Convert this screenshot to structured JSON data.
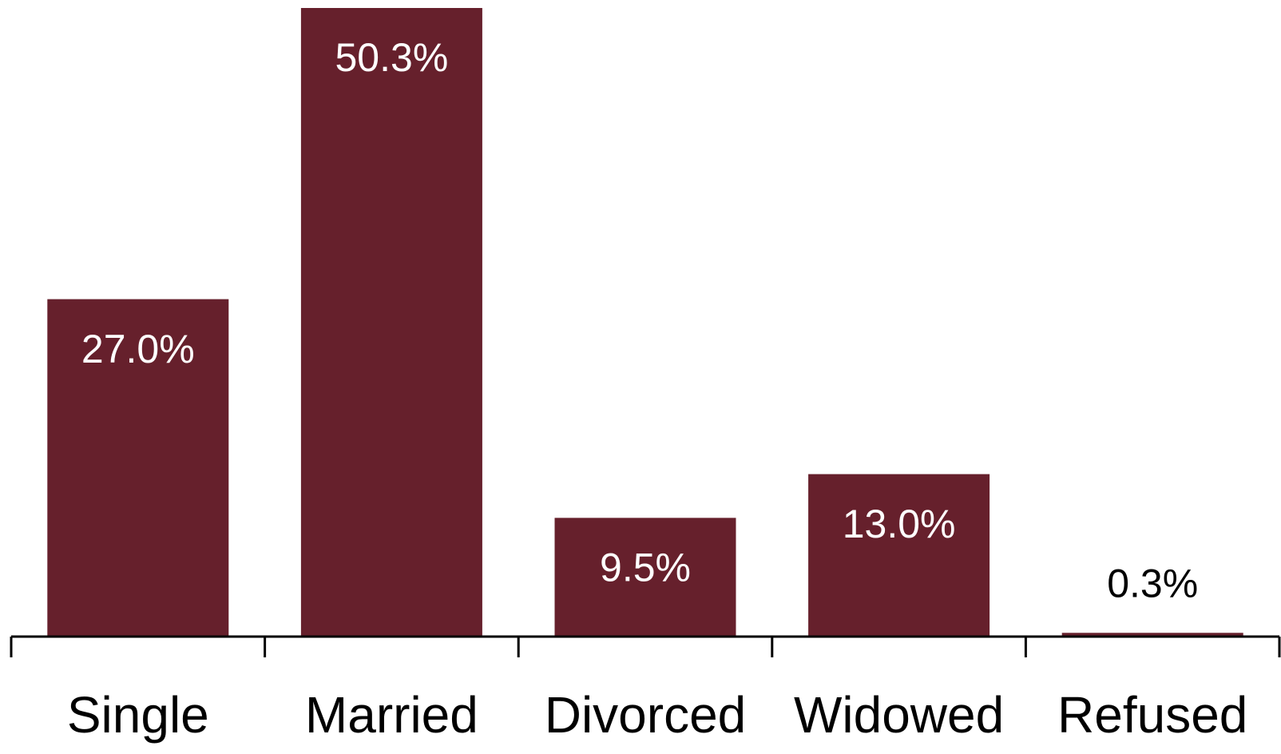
{
  "chart_data": {
    "type": "bar",
    "categories": [
      "Single",
      "Married",
      "Divorced",
      "Widowed",
      "Refused"
    ],
    "values": [
      27.0,
      50.3,
      9.5,
      13.0,
      0.3
    ],
    "value_labels": [
      "27.0%",
      "50.3%",
      "9.5%",
      "13.0%",
      "0.3%"
    ],
    "color": "#66202c"
  }
}
